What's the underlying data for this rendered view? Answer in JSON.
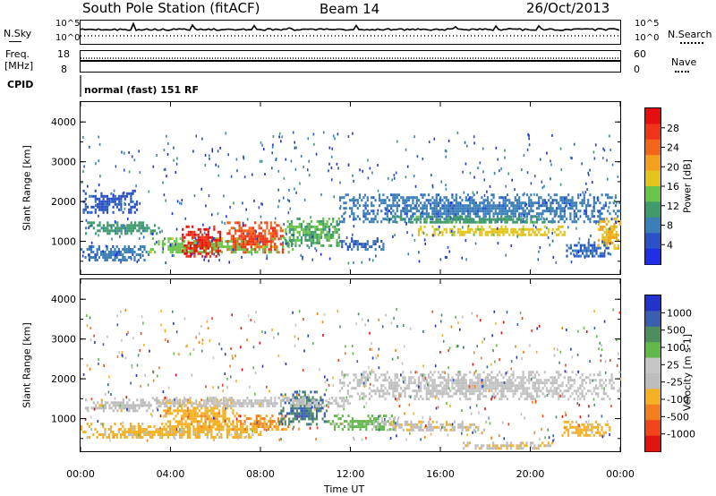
{
  "header": {
    "station": "South Pole Station (fitACF)",
    "beam": "Beam 14",
    "date": "26/Oct/2013"
  },
  "panels": {
    "noise": {
      "left_label": "N.Sky",
      "left_ticks": [
        "10^5",
        "10^0"
      ],
      "right_label": "N.Search",
      "right_ticks": [
        "10^5",
        "10^0"
      ]
    },
    "freq": {
      "left_label_1": "Freq.",
      "left_label_2": "[MHz]",
      "left_ticks": [
        "18",
        "8"
      ],
      "right_label": "Nave",
      "right_ticks": [
        "60",
        "0"
      ]
    },
    "cpid": {
      "label": "CPID",
      "mode": "normal (fast) 151 RF"
    }
  },
  "colors": {
    "power": [
      "#1f2fe6",
      "#2a52c6",
      "#3c7fb8",
      "#3f9a6c",
      "#6bc44a",
      "#e3c41e",
      "#f3a01e",
      "#f2661c",
      "#ef3418",
      "#e50e0e"
    ],
    "velocity": [
      "#e21212",
      "#f1441a",
      "#f37e1e",
      "#f4b126",
      "#bdbdbd",
      "#c6c6c6",
      "#62b84a",
      "#4e8e5e",
      "#3a5fb0",
      "#2133c8"
    ]
  },
  "chart_data": [
    {
      "type": "heatmap",
      "panel": "power",
      "ylabel": "Slant Range [km]",
      "xlabel": "",
      "x_ticks": [
        "00:00",
        "04:00",
        "08:00",
        "12:00",
        "16:00",
        "20:00",
        "00:00"
      ],
      "y_ticks": [
        "4000",
        "3000",
        "2000",
        "1000"
      ],
      "xlim": [
        0,
        24
      ],
      "ylim": [
        180,
        4500
      ],
      "colorbar": {
        "label": "Power [dB]",
        "ticks": [
          "28",
          "24",
          "20",
          "16",
          "12",
          "8",
          "4"
        ],
        "range": [
          0,
          30
        ]
      },
      "regions": [
        {
          "t0": 0.0,
          "t1": 3.0,
          "r0": 500,
          "r1": 900,
          "value": 7
        },
        {
          "t0": 0.2,
          "t1": 3.5,
          "r0": 1200,
          "r1": 1500,
          "value": 10
        },
        {
          "t0": 0.1,
          "t1": 2.5,
          "r0": 1700,
          "r1": 2300,
          "value": 5
        },
        {
          "t0": 3.0,
          "t1": 9.5,
          "r0": 700,
          "r1": 1100,
          "value": 14
        },
        {
          "t0": 4.5,
          "t1": 6.3,
          "r0": 600,
          "r1": 1400,
          "value": 27
        },
        {
          "t0": 6.5,
          "t1": 9.0,
          "r0": 750,
          "r1": 1500,
          "value": 24
        },
        {
          "t0": 9.0,
          "t1": 11.5,
          "r0": 900,
          "r1": 1600,
          "value": 12
        },
        {
          "t0": 11.5,
          "t1": 13.5,
          "r0": 800,
          "r1": 1100,
          "value": 6
        },
        {
          "t0": 11.5,
          "t1": 24.0,
          "r0": 1500,
          "r1": 2200,
          "value": 7
        },
        {
          "t0": 15.0,
          "t1": 21.5,
          "r0": 1150,
          "r1": 1400,
          "value": 16
        },
        {
          "t0": 13.5,
          "t1": 21.0,
          "r0": 1450,
          "r1": 1650,
          "value": 11
        },
        {
          "t0": 21.5,
          "t1": 23.5,
          "r0": 600,
          "r1": 1000,
          "value": 6
        },
        {
          "t0": 23.0,
          "t1": 24.0,
          "r0": 800,
          "r1": 1600,
          "value": 18
        }
      ]
    },
    {
      "type": "heatmap",
      "panel": "velocity",
      "ylabel": "Slant Range [km]",
      "xlabel": "Time UT",
      "x_ticks": [
        "00:00",
        "04:00",
        "08:00",
        "12:00",
        "16:00",
        "20:00",
        "00:00"
      ],
      "y_ticks": [
        "4000",
        "3000",
        "2000",
        "1000"
      ],
      "xlim": [
        0,
        24
      ],
      "ylim": [
        180,
        4500
      ],
      "colorbar": {
        "label": "Velocity [m s-1]",
        "ticks": [
          "1000",
          "500",
          "100",
          "25",
          "-25",
          "-100",
          "-500",
          "-1000"
        ],
        "range": [
          -1200,
          1200
        ]
      },
      "regions": [
        {
          "t0": 0.0,
          "t1": 8.0,
          "r0": 500,
          "r1": 900,
          "value": -300
        },
        {
          "t0": 0.2,
          "t1": 3.5,
          "r0": 1200,
          "r1": 1500,
          "value": -150
        },
        {
          "t0": 3.5,
          "t1": 7.0,
          "r0": 700,
          "r1": 1500,
          "value": -400
        },
        {
          "t0": 7.0,
          "t1": 9.2,
          "r0": 700,
          "r1": 1100,
          "value": -500
        },
        {
          "t0": 8.8,
          "t1": 11.0,
          "r0": 850,
          "r1": 1700,
          "value": 700
        },
        {
          "t0": 11.0,
          "t1": 14.0,
          "r0": 700,
          "r1": 1100,
          "value": 300
        },
        {
          "t0": 3.0,
          "t1": 12.0,
          "r0": 1300,
          "r1": 1550,
          "value": 0
        },
        {
          "t0": 11.5,
          "t1": 24.0,
          "r0": 1500,
          "r1": 2200,
          "value": 10
        },
        {
          "t0": 13.0,
          "t1": 18.0,
          "r0": 700,
          "r1": 950,
          "value": -200
        },
        {
          "t0": 21.3,
          "t1": 23.5,
          "r0": 600,
          "r1": 950,
          "value": -300
        },
        {
          "t0": 17.0,
          "t1": 21.0,
          "r0": 250,
          "r1": 420,
          "value": -200
        }
      ]
    }
  ]
}
